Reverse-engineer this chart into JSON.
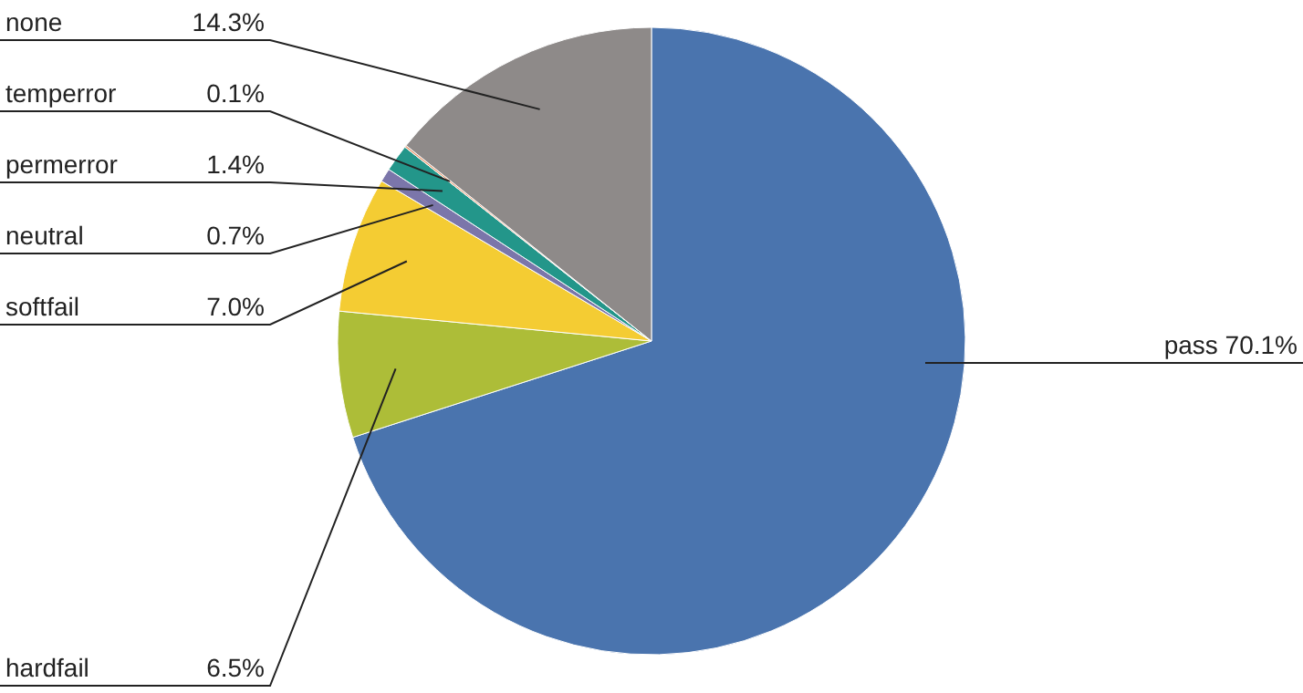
{
  "chart_data": {
    "type": "pie",
    "categories": [
      "pass",
      "hardfail",
      "softfail",
      "neutral",
      "permerror",
      "temperror",
      "none"
    ],
    "values": [
      70.1,
      6.5,
      7.0,
      0.7,
      1.4,
      0.1,
      14.3
    ],
    "value_labels": [
      "70.1%",
      "6.5%",
      "7.0%",
      "0.7%",
      "1.4%",
      "0.1%",
      "14.3%"
    ],
    "colors": [
      "#4a74ae",
      "#adbd38",
      "#f4cc33",
      "#7b76aa",
      "#23968a",
      "#e8956a",
      "#8e8a89"
    ]
  }
}
